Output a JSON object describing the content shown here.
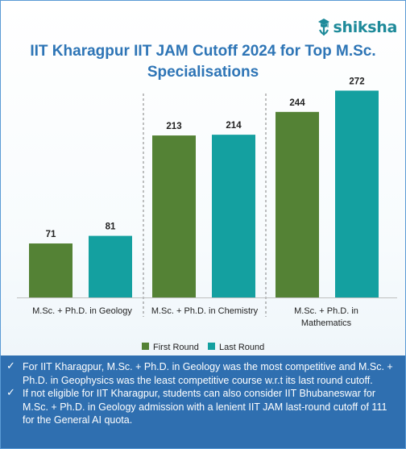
{
  "brand": {
    "logo_text": "shiksha",
    "logo_icon": "graduation-cap-icon"
  },
  "chart_data": {
    "type": "bar",
    "title_lines": [
      "IIT Kharagpur IIT JAM Cutoff 2024 for Top M.Sc.",
      "Specialisations"
    ],
    "categories": [
      [
        "M.Sc. + Ph.D. in Geology"
      ],
      [
        "M.Sc. + Ph.D. in Chemistry"
      ],
      [
        "M.Sc. + Ph.D. in",
        "Mathematics"
      ]
    ],
    "series": [
      {
        "name": "First Round",
        "color": "#548235",
        "values": [
          71,
          213,
          244
        ]
      },
      {
        "name": "Last Round",
        "color": "#14a0a0",
        "values": [
          81,
          214,
          272
        ]
      }
    ],
    "ylim": [
      0,
      300
    ],
    "grid": false,
    "legend_position": "bottom"
  },
  "notes": [
    {
      "icon": "check-icon",
      "text": "For IIT Kharagpur, M.Sc. + Ph.D. in Geology was the most competitive and M.Sc. + Ph.D. in Geophysics was the least competitive course w.r.t its last round cutoff."
    },
    {
      "icon": "check-icon",
      "text": "If not eligible for IIT Kharagpur, students can also consider IIT Bhubaneswar for M.Sc. + Ph.D. in Geology admission with a lenient IIT JAM last-round cutoff of 111 for the General AI quota."
    }
  ]
}
